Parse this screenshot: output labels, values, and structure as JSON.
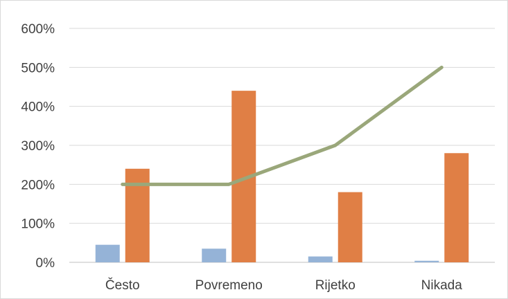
{
  "chart_data": {
    "type": "bar",
    "title": "",
    "xlabel": "",
    "ylabel": "",
    "categories": [
      "Često",
      "Povremeno",
      "Rijetko",
      "Nikada"
    ],
    "ylim": [
      0,
      6
    ],
    "yticks": [
      0,
      1,
      2,
      3,
      4,
      5,
      6
    ],
    "ytick_labels": [
      "0%",
      "100%",
      "200%",
      "300%",
      "400%",
      "500%",
      "600%"
    ],
    "grid": true,
    "legend": "none",
    "series": [
      {
        "type": "bar",
        "values": [
          0.45,
          0.35,
          0.15,
          0.04
        ],
        "color": "#95b3d7"
      },
      {
        "type": "bar",
        "values": [
          2.4,
          4.4,
          1.8,
          2.8
        ],
        "color": "#e07f45"
      },
      {
        "type": "line",
        "values": [
          2.0,
          2.0,
          3.0,
          5.0
        ],
        "color": "#9aa77a"
      }
    ]
  }
}
